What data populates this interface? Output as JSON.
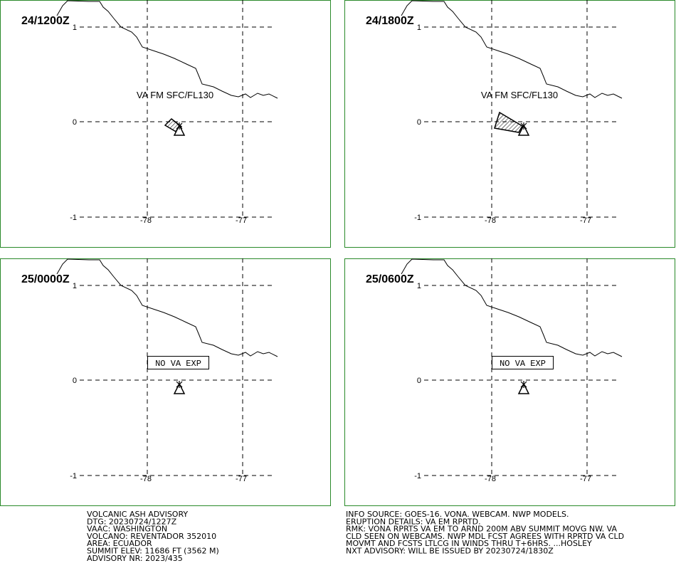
{
  "panels": [
    {
      "time": "24/1200Z",
      "annotation": "VA FM SFC/FL130"
    },
    {
      "time": "24/1800Z",
      "annotation": "VA FM SFC/FL130"
    },
    {
      "time": "25/0000Z",
      "annotation": "NO VA EXP"
    },
    {
      "time": "25/0600Z",
      "annotation": "NO VA EXP"
    }
  ],
  "grid": {
    "lat_labels": [
      "1",
      "0",
      "-1"
    ],
    "lon_labels": [
      "-78",
      "-77"
    ]
  },
  "advisory_left": [
    "VOLCANIC ASH ADVISORY",
    "DTG: 20230724/1227Z",
    "VAAC: WASHINGTON",
    "VOLCANO: REVENTADOR 352010",
    "AREA: ECUADOR",
    "SUMMIT ELEV: 11686 FT (3562 M)",
    "ADVISORY NR: 2023/435"
  ],
  "advisory_right": [
    "INFO SOURCE: GOES-16. VONA. WEBCAM. NWP MODELS.",
    "ERUPTION DETAILS: VA EM RPRTD.",
    "RMK: VONA RPRTS VA EM TO ARND 200M ABV SUMMIT MOVG NW. VA",
    "CLD SEEN ON WEBCAMS. NWP MDL FCST AGREES WITH RPRTD VA CLD",
    "MOVMT AND FCSTS LTLCG IN WINDS THRU T+6HRS. ...HOSLEY",
    "NXT ADVISORY: WILL BE ISSUED BY 20230724/1830Z"
  ]
}
